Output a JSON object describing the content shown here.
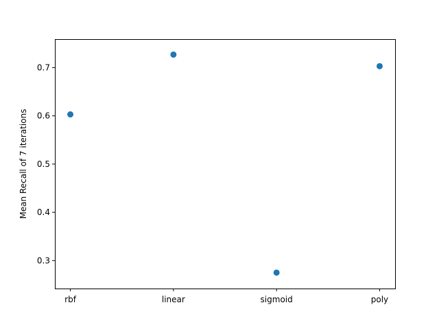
{
  "chart_data": {
    "type": "scatter",
    "title": "",
    "xlabel": "",
    "ylabel": "Mean Recall of 7 iterations",
    "categories": [
      "rbf",
      "linear",
      "sigmoid",
      "poly"
    ],
    "values": [
      0.603,
      0.727,
      0.275,
      0.703
    ],
    "ylim": [
      0.242,
      0.759
    ],
    "yticks": [
      0.3,
      0.4,
      0.5,
      0.6,
      0.7
    ],
    "ytick_labels": [
      "0.3",
      "0.4",
      "0.5",
      "0.6",
      "0.7"
    ],
    "grid": false,
    "legend": "none",
    "marker_color": "#1f77b4"
  }
}
